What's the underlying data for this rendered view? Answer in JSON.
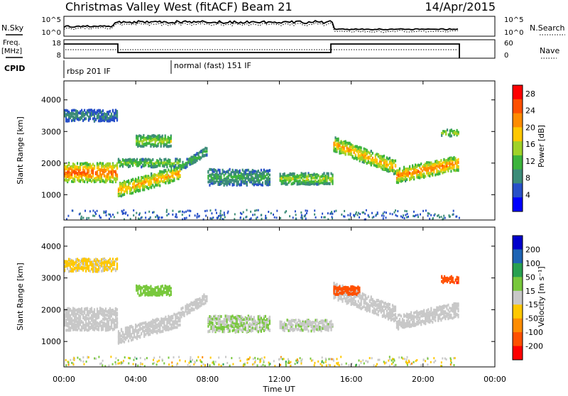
{
  "header": {
    "title": "Christmas Valley West (fitACF)",
    "beam": "Beam 21",
    "date": "14/Apr/2015"
  },
  "sky_panel": {
    "left_label": "N.Sky",
    "right_label": "N.Search",
    "left_ticks": [
      "10^5",
      "10^0"
    ],
    "right_ticks": [
      "10^5",
      "10^0"
    ]
  },
  "freq_panel": {
    "left_label_line1": "Freq.",
    "left_label_line2": "[MHz]",
    "right_label": "Nave",
    "left_ticks": [
      "18",
      "8"
    ],
    "right_ticks": [
      "60",
      "0"
    ]
  },
  "cpid": {
    "label": "CPID",
    "programs": [
      {
        "name": "rbsp 201 IF",
        "start_h": 0,
        "end_h": 6
      },
      {
        "name": "normal (fast) 151 IF",
        "start_h": 6,
        "end_h": 22
      }
    ]
  },
  "colors": {
    "power_scale": [
      "#0000ff",
      "#2850c8",
      "#3c8c78",
      "#3cb43c",
      "#a0d228",
      "#ffc800",
      "#ff8c00",
      "#ff5000",
      "#ff0000"
    ],
    "velocity_scale": [
      "#0000cc",
      "#1e64b4",
      "#28a050",
      "#78c83c",
      "#c8c8c8",
      "#ffc800",
      "#ff8c00",
      "#ff5000",
      "#ff0000"
    ]
  },
  "chart_data": [
    {
      "type": "heatmap",
      "title": "",
      "ylabel": "Slant Range [km]",
      "xlabel": "Time UT",
      "xlim": [
        0,
        24
      ],
      "ylim": [
        200,
        4600
      ],
      "x_ticks": [
        "00:00",
        "04:00",
        "08:00",
        "12:00",
        "16:00",
        "20:00",
        "00:00"
      ],
      "y_ticks": [
        1000,
        2000,
        3000,
        4000
      ],
      "colorbar": {
        "label": "Power [dB]",
        "ticks": [
          "4",
          "8",
          "12",
          "16",
          "20",
          "24",
          "28"
        ],
        "range": [
          0,
          30
        ]
      },
      "regions": [
        {
          "x": [
            0.0,
            3.0
          ],
          "y_center": 1700,
          "thickness": 600,
          "level": 26
        },
        {
          "x": [
            3.0,
            6.5
          ],
          "y_center_start": 1150,
          "y_center_end": 1700,
          "thickness": 450,
          "level": 22
        },
        {
          "x": [
            3.0,
            6.5
          ],
          "y_center": 2000,
          "thickness": 250,
          "level": 14
        },
        {
          "x": [
            6.5,
            8.0
          ],
          "y_center_start": 1900,
          "y_center_end": 2400,
          "thickness": 250,
          "level": 12
        },
        {
          "x": [
            8.0,
            11.5
          ],
          "y_center": 1550,
          "thickness": 500,
          "level": 10
        },
        {
          "x": [
            12.0,
            15.0
          ],
          "y_center": 1500,
          "thickness": 350,
          "level": 16
        },
        {
          "x": [
            15.0,
            18.5
          ],
          "y_center_start": 2600,
          "y_center_end": 1850,
          "thickness": 450,
          "level": 22
        },
        {
          "x": [
            18.5,
            22.0
          ],
          "y_center_start": 1600,
          "y_center_end": 2000,
          "thickness": 450,
          "level": 24
        },
        {
          "x": [
            0.0,
            3.0
          ],
          "y_center": 3500,
          "thickness": 350,
          "level": 8
        },
        {
          "x": [
            4.0,
            6.0
          ],
          "y_center": 2700,
          "thickness": 350,
          "level": 16
        },
        {
          "x": [
            21.0,
            22.0
          ],
          "y_center": 2950,
          "thickness": 200,
          "level": 16
        }
      ]
    },
    {
      "type": "heatmap",
      "title": "",
      "ylabel": "Slant Range [km]",
      "xlabel": "Time UT",
      "xlim": [
        0,
        24
      ],
      "ylim": [
        200,
        4600
      ],
      "x_ticks": [
        "00:00",
        "04:00",
        "08:00",
        "12:00",
        "16:00",
        "20:00",
        "00:00"
      ],
      "y_ticks": [
        1000,
        2000,
        3000,
        4000
      ],
      "colorbar": {
        "label": "Velocity [m s⁻¹]",
        "ticks": [
          "200",
          "100",
          "50",
          "15",
          "-15",
          "-50",
          "-100",
          "-200"
        ],
        "range": [
          -250,
          250
        ]
      },
      "regions": [
        {
          "x": [
            0.0,
            3.0
          ],
          "y_center": 1700,
          "thickness": 700,
          "velocity": 0
        },
        {
          "x": [
            3.0,
            6.5
          ],
          "y_center_start": 1150,
          "y_center_end": 1700,
          "thickness": 450,
          "velocity": 0
        },
        {
          "x": [
            6.5,
            8.0
          ],
          "y_center_start": 1900,
          "y_center_end": 2400,
          "thickness": 300,
          "velocity": 0
        },
        {
          "x": [
            8.0,
            11.5
          ],
          "y_center": 1550,
          "thickness": 500,
          "velocity": 30
        },
        {
          "x": [
            12.0,
            15.0
          ],
          "y_center": 1500,
          "thickness": 350,
          "velocity": 20
        },
        {
          "x": [
            15.0,
            18.5
          ],
          "y_center_start": 2600,
          "y_center_end": 1850,
          "thickness": 500,
          "velocity": 0
        },
        {
          "x": [
            18.5,
            22.0
          ],
          "y_center_start": 1600,
          "y_center_end": 2000,
          "thickness": 450,
          "velocity": 0
        },
        {
          "x": [
            0.0,
            3.0
          ],
          "y_center": 3400,
          "thickness": 400,
          "velocity": -40
        },
        {
          "x": [
            4.0,
            6.0
          ],
          "y_center": 2600,
          "thickness": 300,
          "velocity": 60
        },
        {
          "x": [
            15.0,
            16.5
          ],
          "y_center": 2600,
          "thickness": 250,
          "velocity": -180
        },
        {
          "x": [
            21.0,
            22.0
          ],
          "y_center": 2950,
          "thickness": 200,
          "velocity": -200
        }
      ]
    }
  ]
}
